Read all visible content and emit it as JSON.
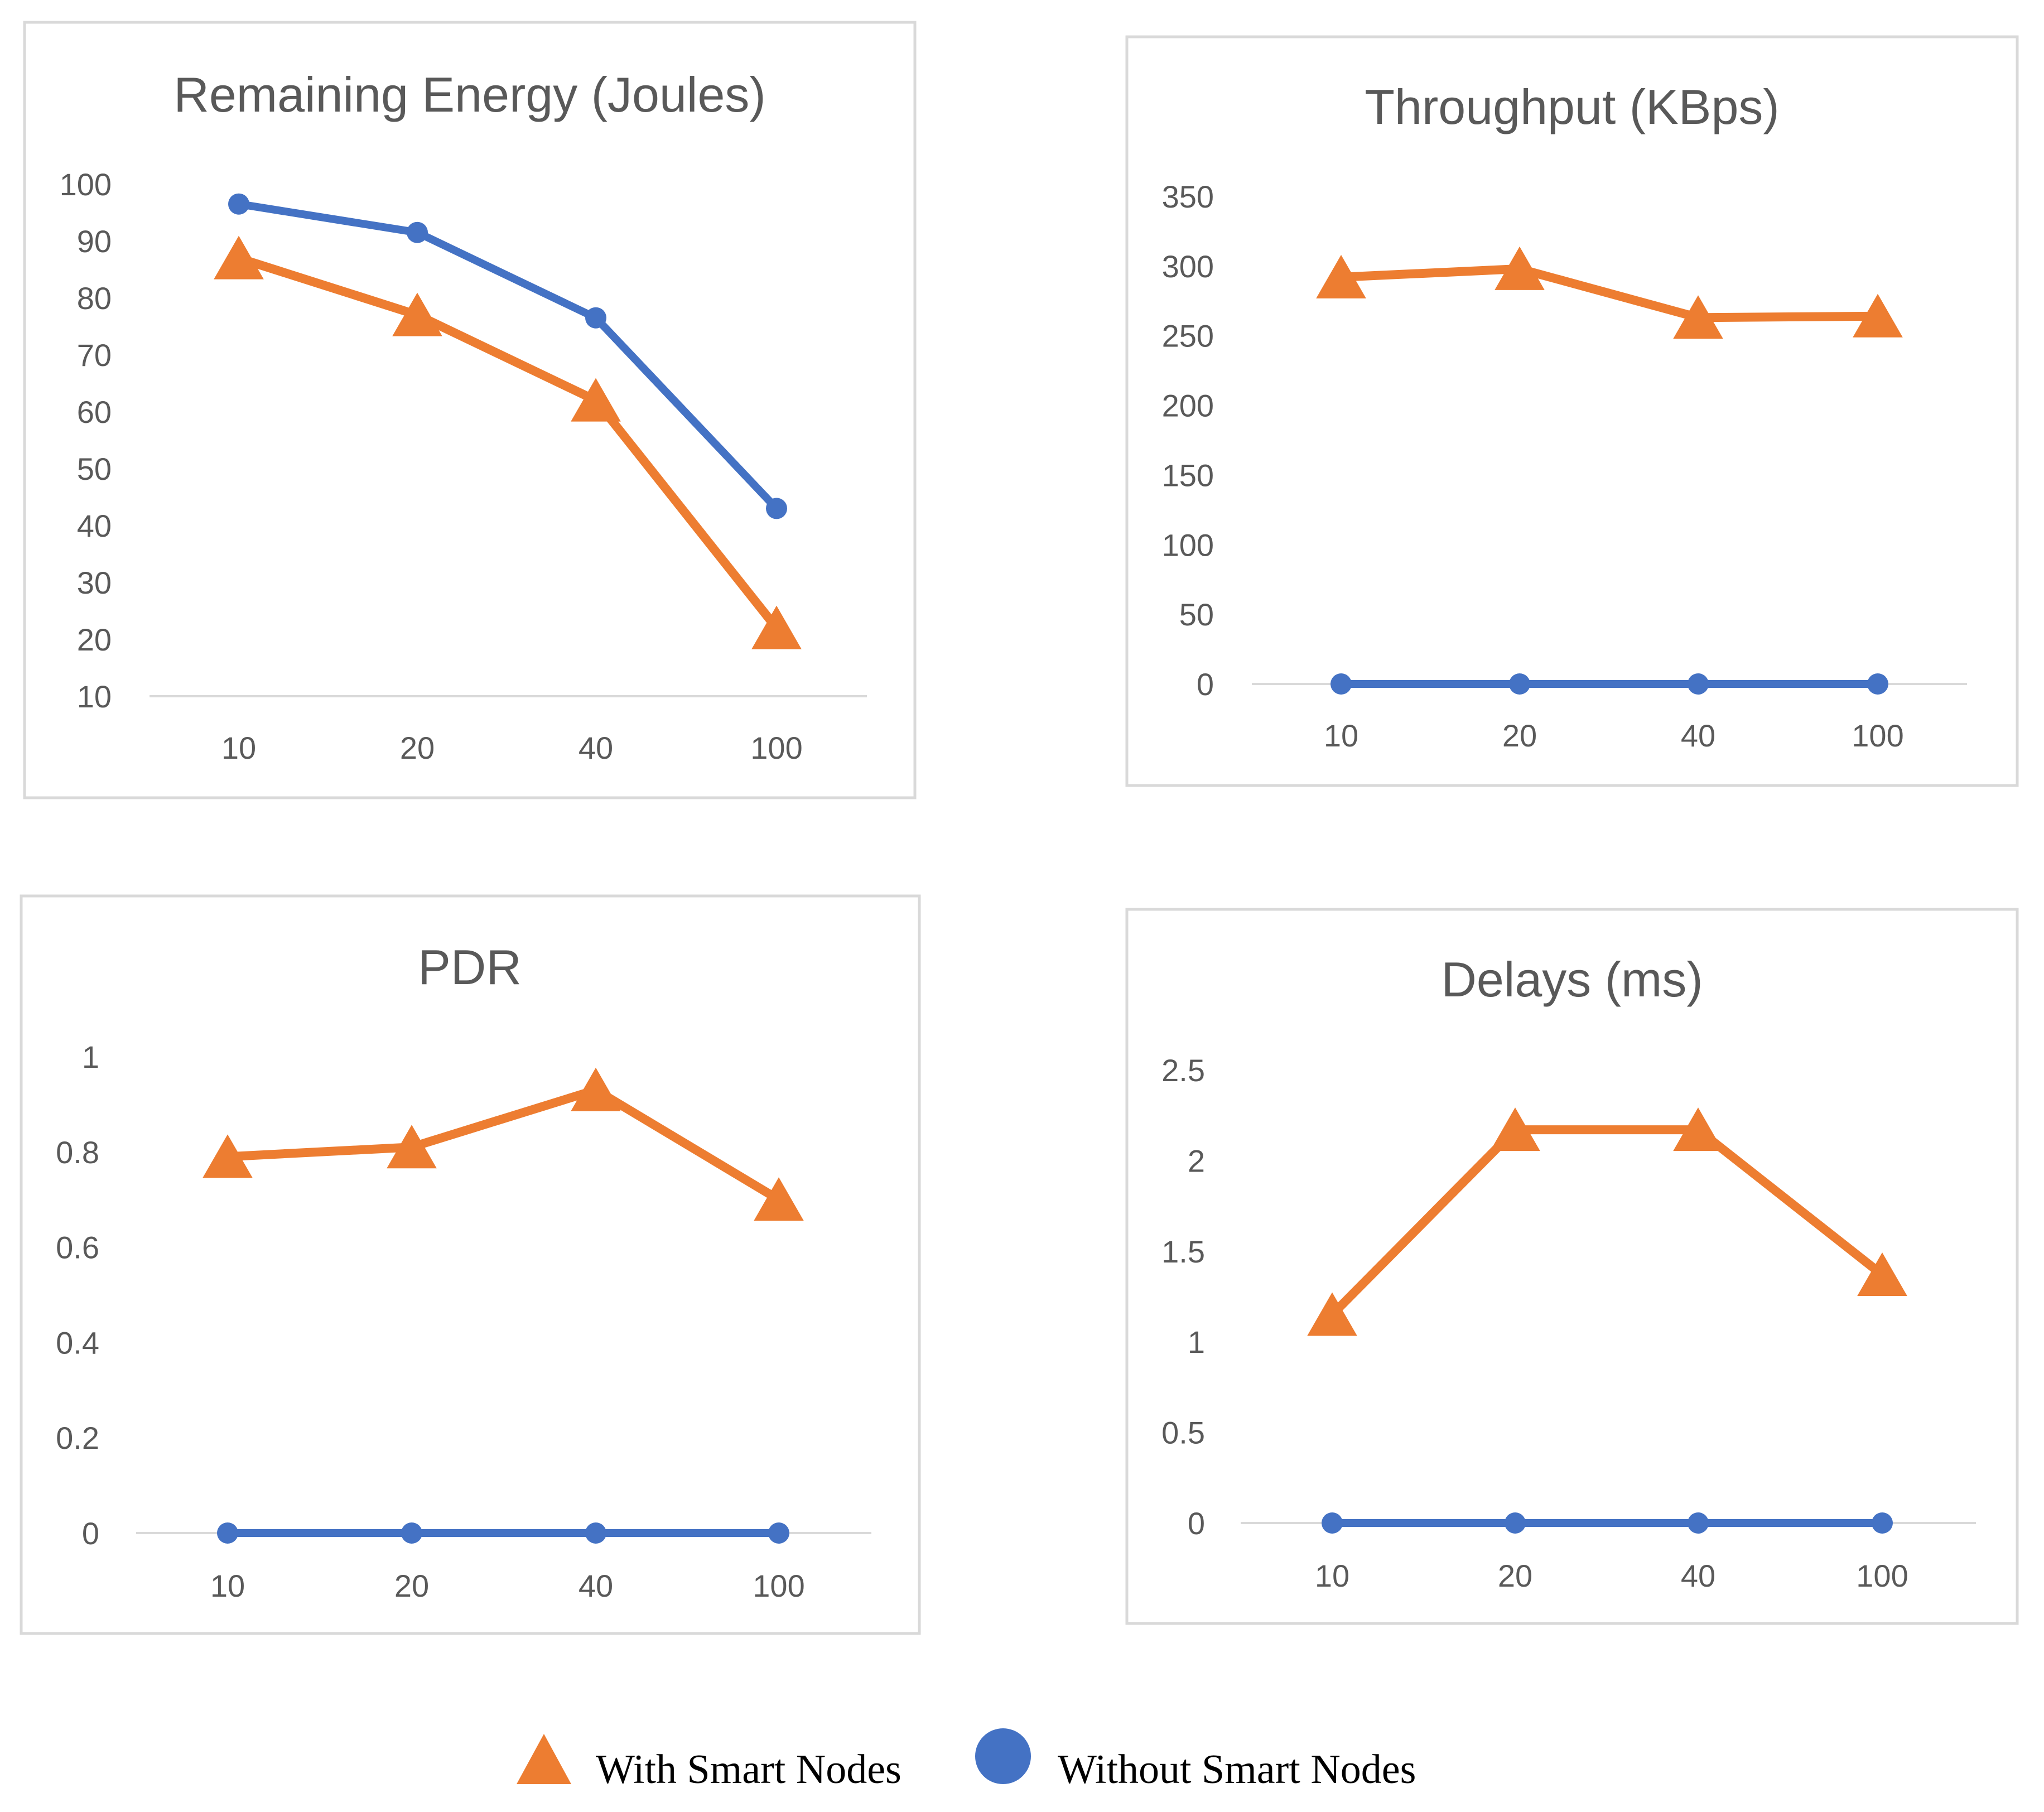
{
  "colors": {
    "with_smart": "#ED7D31",
    "without_smart": "#4472C4"
  },
  "legend": {
    "with_label": "With Smart Nodes",
    "without_label": "Without Smart Nodes"
  },
  "chart_data": [
    {
      "type": "line",
      "title": "Remaining Energy (Joules)",
      "categories": [
        "10",
        "20",
        "40",
        "100"
      ],
      "ylim": [
        10,
        100
      ],
      "yticks": [
        "10",
        "20",
        "30",
        "40",
        "50",
        "60",
        "70",
        "80",
        "90",
        "100"
      ],
      "series": [
        {
          "name": "With Smart Nodes",
          "marker": "triangle",
          "values": [
            87,
            77,
            62,
            22
          ]
        },
        {
          "name": "Without Smart Nodes",
          "marker": "circle",
          "values": [
            96.5,
            91.5,
            76.5,
            43
          ]
        }
      ]
    },
    {
      "type": "line",
      "title": "Throughput (KBps)",
      "categories": [
        "10",
        "20",
        "40",
        "100"
      ],
      "ylim": [
        0,
        350
      ],
      "yticks": [
        "0",
        "50",
        "100",
        "150",
        "200",
        "250",
        "300",
        "350"
      ],
      "series": [
        {
          "name": "With Smart Nodes",
          "marker": "triangle",
          "values": [
            292,
            298,
            263,
            264
          ]
        },
        {
          "name": "Without Smart Nodes",
          "marker": "circle",
          "values": [
            0,
            0,
            0,
            0
          ]
        }
      ]
    },
    {
      "type": "line",
      "title": "PDR",
      "categories": [
        "10",
        "20",
        "40",
        "100"
      ],
      "ylim": [
        0,
        1
      ],
      "yticks": [
        "0",
        "0.2",
        "0.4",
        "0.6",
        "0.8",
        "1"
      ],
      "series": [
        {
          "name": "With Smart Nodes",
          "marker": "triangle",
          "values": [
            0.79,
            0.81,
            0.93,
            0.7
          ]
        },
        {
          "name": "Without Smart Nodes",
          "marker": "circle",
          "values": [
            0,
            0,
            0,
            0
          ]
        }
      ]
    },
    {
      "type": "line",
      "title": "Delays (ms)",
      "categories": [
        "10",
        "20",
        "40",
        "100"
      ],
      "ylim": [
        0,
        2.5
      ],
      "yticks": [
        "0",
        "0.5",
        "1",
        "1.5",
        "2",
        "2.5"
      ],
      "series": [
        {
          "name": "With Smart Nodes",
          "marker": "triangle",
          "values": [
            1.15,
            2.17,
            2.17,
            1.37
          ]
        },
        {
          "name": "Without Smart Nodes",
          "marker": "circle",
          "values": [
            0,
            0,
            0,
            0
          ]
        }
      ]
    }
  ]
}
